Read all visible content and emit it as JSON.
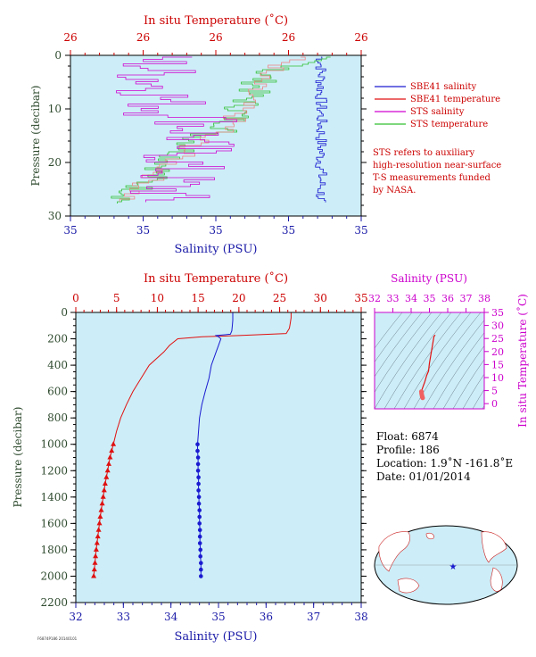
{
  "chart_data": [
    {
      "id": "near-surface",
      "type": "line",
      "top_xlabel": "In situ Temperature (˚C)",
      "top_ticks": [
        "26",
        "26",
        "26",
        "26",
        "26"
      ],
      "bottom_xlabel": "Salinity (PSU)",
      "bottom_ticks": [
        "35",
        "35",
        "35",
        "35",
        "35"
      ],
      "ylabel": "Pressure (decibar)",
      "ylim": [
        0,
        30
      ],
      "yticks": [
        0,
        10,
        20,
        30
      ],
      "plot_bg": "#cdeef8",
      "legend": [
        {
          "label": "SBE41 salinity",
          "color": "#1a1ad0"
        },
        {
          "label": "SBE41 temperature",
          "color": "#e01010"
        },
        {
          "label": "STS salinity",
          "color": "#d000d0"
        },
        {
          "label": "STS temperature",
          "color": "#30c030"
        }
      ],
      "note": [
        "STS refers to auxiliary",
        "high-resolution near-surface",
        "T-S measurements funded",
        "by NASA."
      ]
    },
    {
      "id": "full-profile",
      "type": "line",
      "top_xlabel": "In situ Temperature (˚C)",
      "top_ticks": [
        0,
        5,
        10,
        15,
        20,
        25,
        30,
        35
      ],
      "xlim_temperature": [
        0,
        35
      ],
      "bottom_xlabel": "Salinity (PSU)",
      "bottom_ticks": [
        32,
        33,
        34,
        35,
        36,
        37,
        38
      ],
      "xlim_salinity": [
        32,
        38
      ],
      "ylabel": "Pressure (decibar)",
      "ylim": [
        0,
        2200
      ],
      "yticks": [
        0,
        200,
        400,
        600,
        800,
        1000,
        1200,
        1400,
        1600,
        1800,
        2000,
        2200
      ],
      "plot_bg": "#cdeef8",
      "series": [
        {
          "name": "temperature",
          "color": "#e01010",
          "pressure": [
            0,
            10,
            40,
            80,
            120,
            160,
            175,
            185,
            200,
            250,
            300,
            400,
            500,
            600,
            700,
            800,
            900,
            1000
          ],
          "values": [
            26.4,
            26.4,
            26.4,
            26.3,
            26.2,
            25.8,
            20.0,
            15.5,
            12.5,
            11.5,
            10.8,
            9.0,
            8.0,
            7.0,
            6.2,
            5.5,
            5.0,
            4.6
          ],
          "marker_pressure": [
            1000,
            1050,
            1100,
            1150,
            1200,
            1250,
            1300,
            1350,
            1400,
            1450,
            1500,
            1550,
            1600,
            1650,
            1700,
            1750,
            1800,
            1850,
            1900,
            1950,
            2000
          ],
          "marker_values": [
            4.6,
            4.4,
            4.2,
            4.05,
            3.9,
            3.75,
            3.6,
            3.48,
            3.36,
            3.24,
            3.12,
            3.0,
            2.9,
            2.8,
            2.7,
            2.6,
            2.5,
            2.42,
            2.35,
            2.28,
            2.2
          ]
        },
        {
          "name": "salinity",
          "color": "#1a1ad0",
          "pressure": [
            0,
            20,
            60,
            100,
            140,
            165,
            175,
            185,
            200,
            250,
            300,
            400,
            500,
            600,
            700,
            800,
            900,
            1000
          ],
          "values": [
            35.3,
            35.3,
            35.3,
            35.29,
            35.28,
            35.25,
            34.95,
            35.0,
            35.05,
            35.0,
            34.95,
            34.85,
            34.8,
            34.72,
            34.65,
            34.6,
            34.58,
            34.56
          ],
          "marker_pressure": [
            1000,
            1050,
            1100,
            1150,
            1200,
            1250,
            1300,
            1350,
            1400,
            1450,
            1500,
            1550,
            1600,
            1650,
            1700,
            1750,
            1800,
            1850,
            1900,
            1950,
            2000
          ],
          "marker_values": [
            34.56,
            34.56,
            34.57,
            34.57,
            34.57,
            34.58,
            34.58,
            34.58,
            34.59,
            34.59,
            34.6,
            34.6,
            34.6,
            34.61,
            34.61,
            34.61,
            34.62,
            34.62,
            34.63,
            34.63,
            34.63
          ]
        }
      ]
    },
    {
      "id": "ts-diagram",
      "type": "scatter",
      "top_xlabel": "Salinity (PSU)",
      "x_ticks": [
        32,
        33,
        34,
        35,
        36,
        37,
        38
      ],
      "xlim": [
        32,
        38
      ],
      "right_ylabel": "In situ Temperature (˚C)",
      "y_ticks": [
        0,
        5,
        10,
        15,
        20,
        25,
        30,
        35
      ],
      "ylim": [
        -2,
        35
      ],
      "curve_salinity": [
        35.3,
        35.3,
        35.25,
        35.0,
        34.95,
        34.85,
        34.75,
        34.65,
        34.6,
        34.58,
        34.56,
        34.57,
        34.59,
        34.61,
        34.63
      ],
      "curve_temperature": [
        26.4,
        26.2,
        25.8,
        15.5,
        12.5,
        10.8,
        8.5,
        6.5,
        5.5,
        5.0,
        4.6,
        3.9,
        3.2,
        2.6,
        2.2
      ]
    }
  ],
  "float_info": {
    "float": "Float: 6874",
    "profile": "Profile: 186",
    "location": "Location: 1.9˚N -161.8˚E",
    "date": "Date: 01/01/2014"
  },
  "footer_code": "F6874P186 20140101",
  "colors": {
    "red": "#cc0000",
    "blue": "#1a1aa8",
    "magenta": "#cc00cc",
    "green_label": "#2e4a2e",
    "plot_bg": "#cdeef8"
  }
}
